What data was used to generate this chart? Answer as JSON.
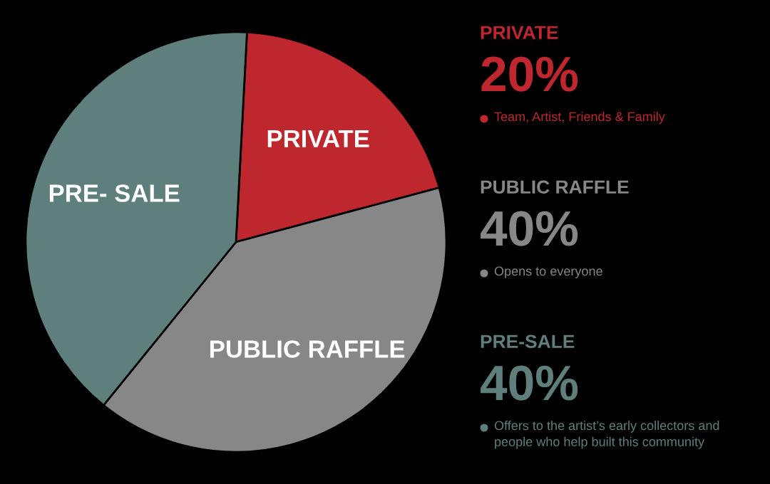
{
  "chart_data": {
    "type": "pie",
    "categories": [
      "PRIVATE",
      "PUBLIC RAFFLE",
      "PRE- SALE"
    ],
    "values": [
      20,
      40,
      40
    ],
    "colors": [
      "#be272e",
      "#878787",
      "#5f7f7c"
    ],
    "annotations": [
      "PRIVATE",
      "20%",
      "Team, Artist, Friends & Family",
      "PUBLIC RAFFLE",
      "40%",
      "Opens to everyone",
      "PRE-SALE",
      "40%",
      "Offers to the artist’s early collectors and\npeople who help built this community"
    ],
    "legend": false
  }
}
